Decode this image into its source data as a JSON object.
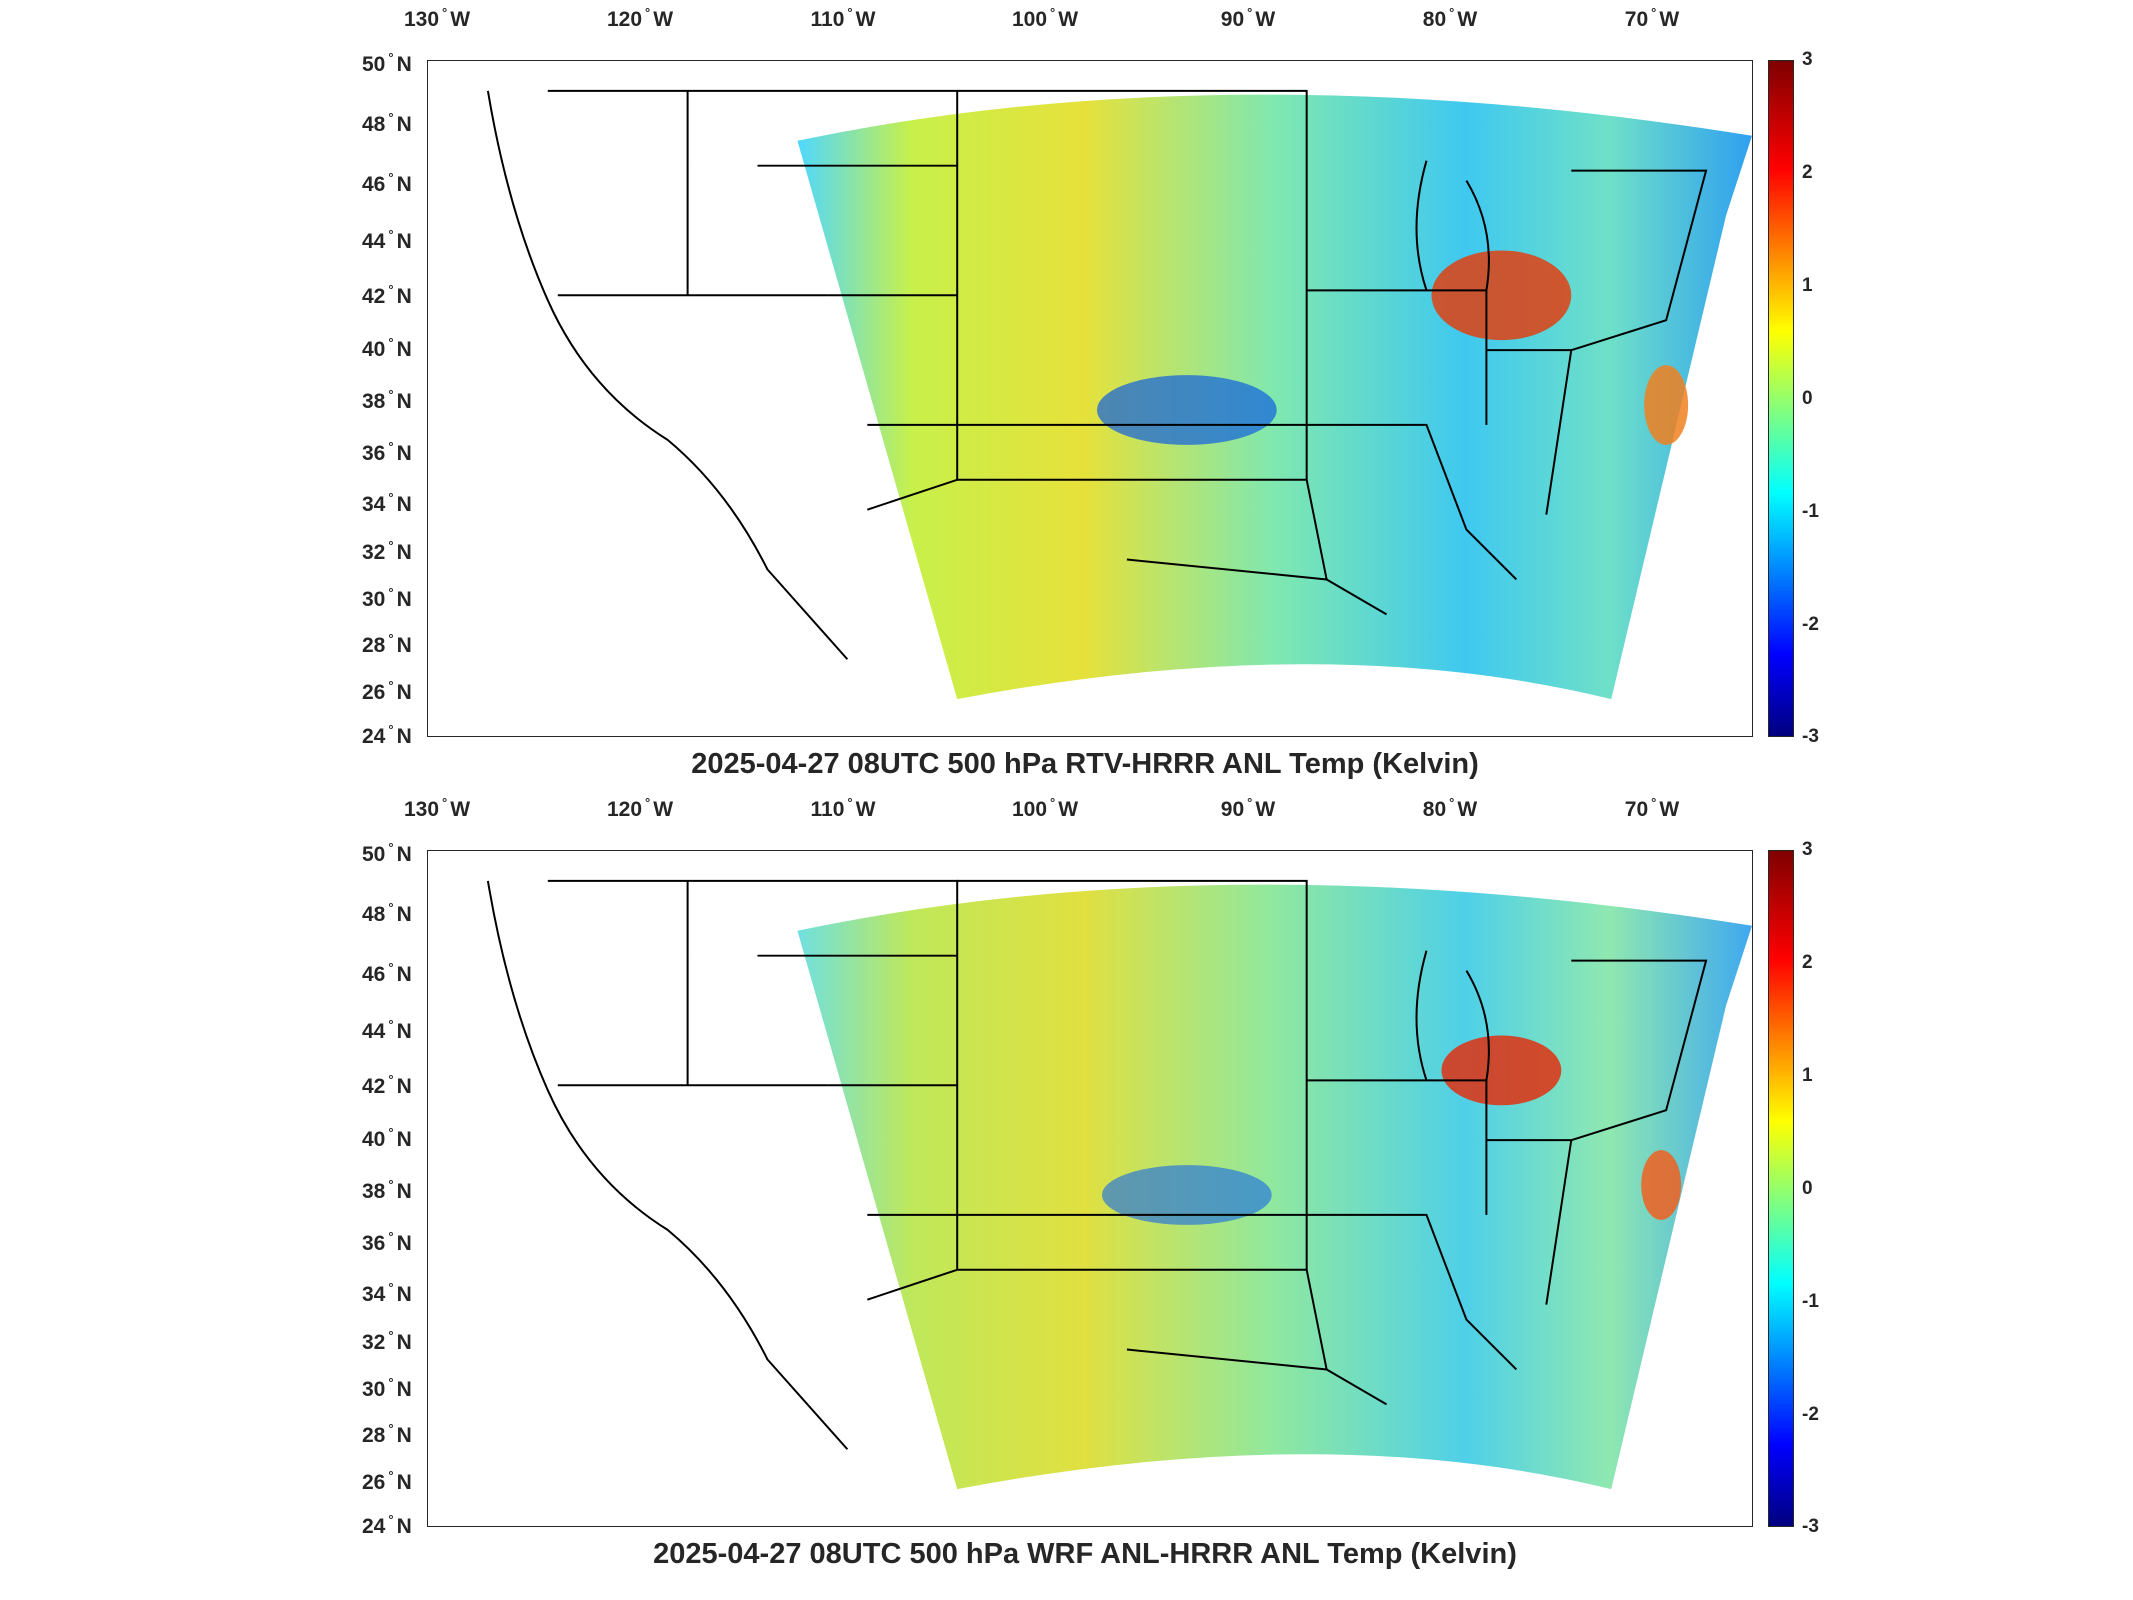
{
  "figures": [
    {
      "title": "2025-04-27 08UTC 500 hPa RTV-HRRR ANL Temp (Kelvin)",
      "lon_labels": [
        "130",
        "120",
        "110",
        "100",
        "90",
        "80",
        "70"
      ],
      "lon_hemisphere": "W",
      "lat_labels": [
        "50",
        "48",
        "46",
        "44",
        "42",
        "40",
        "38",
        "36",
        "34",
        "32",
        "30",
        "28",
        "26",
        "24"
      ],
      "lat_hemisphere": "N",
      "colorbar": {
        "ticks": [
          "3",
          "2",
          "1",
          "0",
          "-1",
          "-2",
          "-3"
        ],
        "colormap": "jet",
        "range": [
          -3,
          3
        ]
      }
    },
    {
      "title": "2025-04-27 08UTC 500 hPa WRF ANL-HRRR ANL Temp (Kelvin)",
      "lon_labels": [
        "130",
        "120",
        "110",
        "100",
        "90",
        "80",
        "70"
      ],
      "lon_hemisphere": "W",
      "lat_labels": [
        "50",
        "48",
        "46",
        "44",
        "42",
        "40",
        "38",
        "36",
        "34",
        "32",
        "30",
        "28",
        "26",
        "24"
      ],
      "lat_hemisphere": "N",
      "colorbar": {
        "ticks": [
          "3",
          "2",
          "1",
          "0",
          "-1",
          "-2",
          "-3"
        ],
        "colormap": "jet",
        "range": [
          -3,
          3
        ]
      }
    }
  ]
}
